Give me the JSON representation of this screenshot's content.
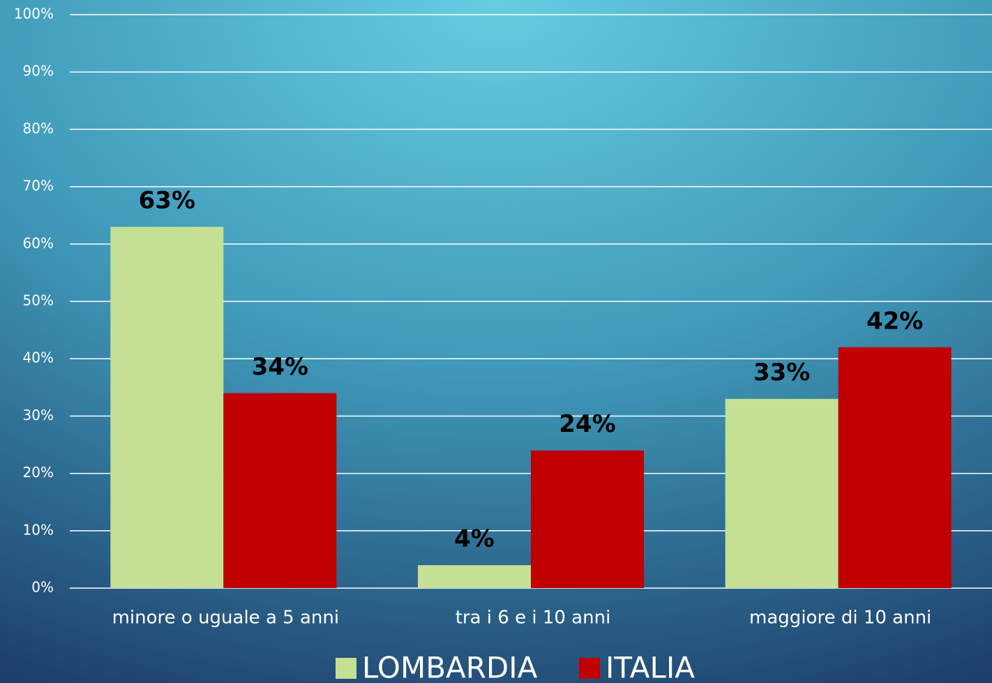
{
  "chart_data": {
    "type": "bar",
    "categories": [
      "minore o uguale a 5 anni",
      "tra i 6 e i 10 anni",
      "maggiore di 10 anni"
    ],
    "series": [
      {
        "name": "LOMBARDIA",
        "color": "#c4e094",
        "values": [
          63,
          4,
          33
        ],
        "value_labels": [
          "63%",
          "4%",
          "33%"
        ]
      },
      {
        "name": "ITALIA",
        "color": "#c00000",
        "values": [
          34,
          24,
          42
        ],
        "value_labels": [
          "34%",
          "24%",
          "42%"
        ]
      }
    ],
    "ylim": [
      0,
      100
    ],
    "yticks": [
      {
        "value": 0,
        "label": "0%"
      },
      {
        "value": 10,
        "label": "10%"
      },
      {
        "value": 20,
        "label": "20%"
      },
      {
        "value": 30,
        "label": "30%"
      },
      {
        "value": 40,
        "label": "40%"
      },
      {
        "value": 50,
        "label": "50%"
      },
      {
        "value": 60,
        "label": "60%"
      },
      {
        "value": 70,
        "label": "70%"
      },
      {
        "value": 80,
        "label": "80%"
      },
      {
        "value": 90,
        "label": "90%"
      },
      {
        "value": 100,
        "label": "100%"
      }
    ],
    "grid": true,
    "legend": "bottom"
  }
}
